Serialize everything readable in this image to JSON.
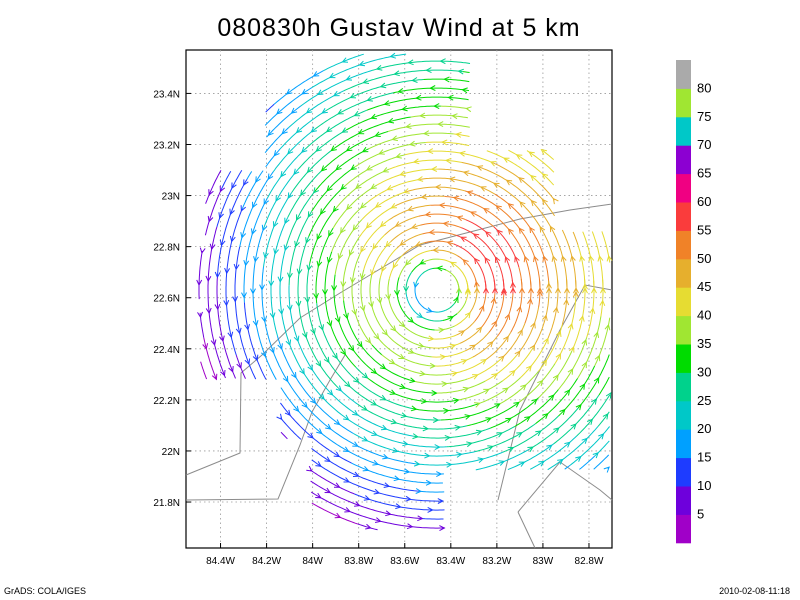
{
  "title": "080830h Gustav Wind at 5 km",
  "footer": {
    "left": "GrADS: COLA/IGES",
    "right": "2010-02-08-11:18"
  },
  "chart_data": {
    "type": "vector-field",
    "title": "080830h Gustav Wind at 5 km",
    "x_axis": {
      "range": [
        -84.55,
        -82.7
      ],
      "ticks": [
        -84.4,
        -84.2,
        -84.0,
        -83.8,
        -83.6,
        -83.4,
        -83.2,
        -83.0,
        -82.8
      ],
      "tick_labels": [
        "84.4W",
        "84.2W",
        "84W",
        "83.8W",
        "83.6W",
        "83.4W",
        "83.2W",
        "83W",
        "82.8W"
      ]
    },
    "y_axis": {
      "range": [
        21.62,
        23.57
      ],
      "ticks": [
        21.8,
        22.0,
        22.2,
        22.4,
        22.6,
        22.8,
        23.0,
        23.2,
        23.4
      ],
      "tick_labels": [
        "21.8N",
        "22N",
        "22.2N",
        "22.4N",
        "22.6N",
        "22.8N",
        "23N",
        "23.2N",
        "23.4N"
      ]
    },
    "grid": "on (dotted)",
    "storm_center": {
      "lon": -83.46,
      "lat": 22.63
    },
    "colorbar": {
      "placement": "right",
      "levels": [
        5,
        10,
        15,
        20,
        25,
        30,
        35,
        40,
        45,
        50,
        55,
        60,
        65,
        70,
        75,
        80
      ],
      "labels": [
        "5",
        "10",
        "15",
        "20",
        "25",
        "30",
        "35",
        "40",
        "45",
        "50",
        "55",
        "60",
        "65",
        "70",
        "75",
        "80"
      ],
      "colors": [
        "#a000c8",
        "#6e00dc",
        "#1e3cff",
        "#00a0ff",
        "#00c8c8",
        "#00d28c",
        "#00dc00",
        "#a0e632",
        "#e6dc32",
        "#e6af2d",
        "#f08228",
        "#fa3c3c",
        "#f00082",
        "#8c00d2",
        "#00c8c8",
        "#a0e632",
        "#aaaaaa"
      ]
    },
    "coastlines": "Cuba (western), approximate"
  }
}
